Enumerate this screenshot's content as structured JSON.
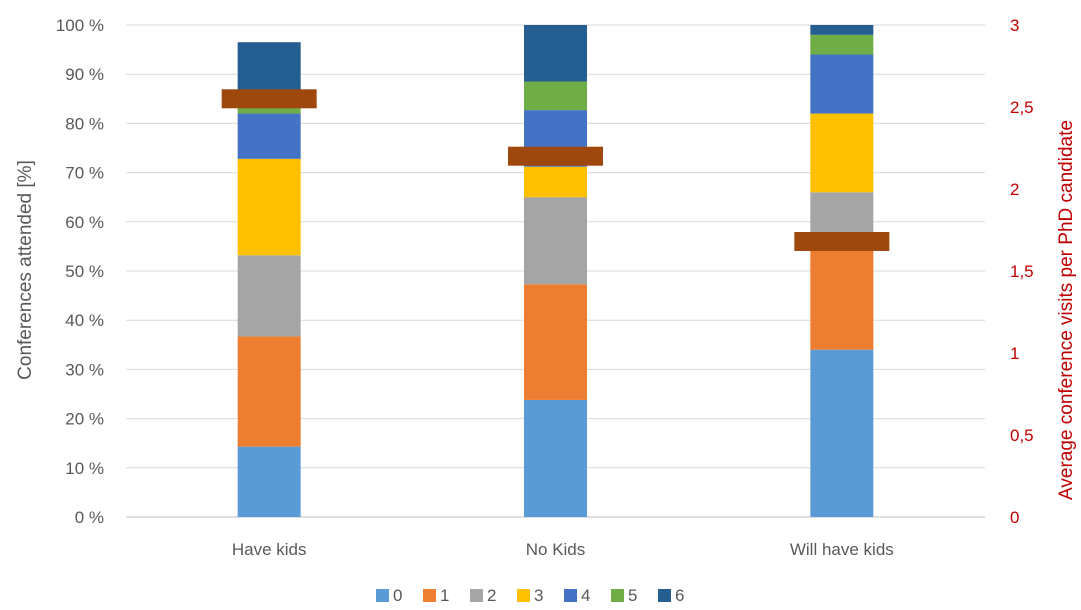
{
  "chart_data": {
    "type": "bar",
    "stacked": true,
    "categories": [
      "Have kids",
      "No Kids",
      "Will have kids"
    ],
    "series": [
      {
        "name": "0",
        "color": "#5b9bd5",
        "values": [
          14.3,
          23.8,
          34.0
        ]
      },
      {
        "name": "1",
        "color": "#ed7d31",
        "values": [
          22.4,
          23.5,
          20.5
        ]
      },
      {
        "name": "2",
        "color": "#a5a5a5",
        "values": [
          16.5,
          17.7,
          11.5
        ]
      },
      {
        "name": "3",
        "color": "#ffc000",
        "values": [
          19.6,
          6.2,
          16.0
        ]
      },
      {
        "name": "4",
        "color": "#4472c4",
        "values": [
          9.2,
          11.5,
          12.0
        ]
      },
      {
        "name": "5",
        "color": "#70ad47",
        "values": [
          2.0,
          5.8,
          4.0
        ]
      },
      {
        "name": "6",
        "color": "#255e91",
        "values": [
          12.5,
          11.5,
          2.0
        ]
      }
    ],
    "average_marker": {
      "color": "#9e480e",
      "values": [
        2.55,
        2.2,
        1.68
      ]
    },
    "ylabel": "Conferences attended [%]",
    "ylim": [
      0,
      100
    ],
    "yticks": [
      "0 %",
      "10 %",
      "20 %",
      "30 %",
      "40 %",
      "50 %",
      "60 %",
      "70 %",
      "80 %",
      "90 %",
      "100 %"
    ],
    "y2label": "Average conference visits per PhD candidate",
    "y2lim": [
      0,
      3
    ],
    "y2ticks": [
      "0",
      "0,5",
      "1",
      "1,5",
      "2",
      "2,5",
      "3"
    ],
    "grid": true,
    "legend_position": "bottom"
  }
}
